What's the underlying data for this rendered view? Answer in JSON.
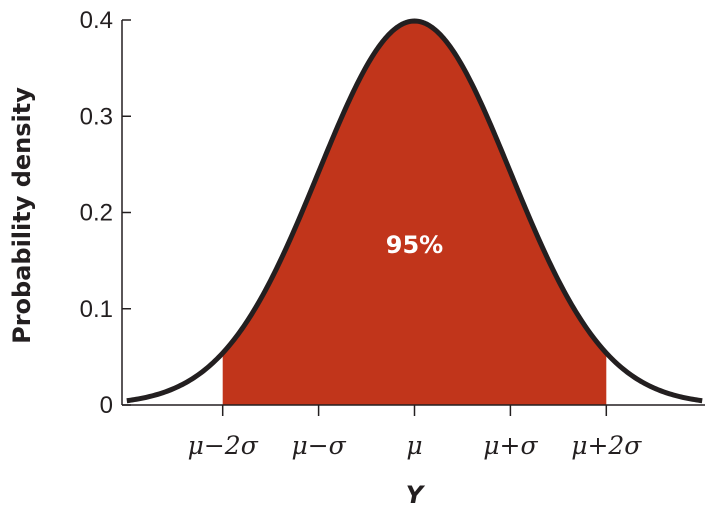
{
  "chart_data": {
    "type": "area",
    "title": "",
    "xlabel": "Y",
    "ylabel": "Probability density",
    "xlim": [
      -3.05,
      3.05
    ],
    "ylim": [
      0,
      0.4
    ],
    "y_ticks": [
      0,
      0.1,
      0.2,
      0.3,
      0.4
    ],
    "y_tick_labels": [
      "0",
      "0.1",
      "0.2",
      "0.3",
      "0.4"
    ],
    "x_ticks": [
      -2,
      -1,
      0,
      1,
      2
    ],
    "x_tick_labels": [
      "μ−2σ",
      "μ−σ",
      "μ",
      "μ+σ",
      "μ+2σ"
    ],
    "curve": {
      "distribution": "normal",
      "mean": 0,
      "sd": 1,
      "x_range": [
        -3,
        3
      ]
    },
    "shaded_region": {
      "from": -2,
      "to": 2,
      "label": "95%",
      "color": "#c1351b"
    },
    "curve_color": "#231f20",
    "grid": false
  }
}
